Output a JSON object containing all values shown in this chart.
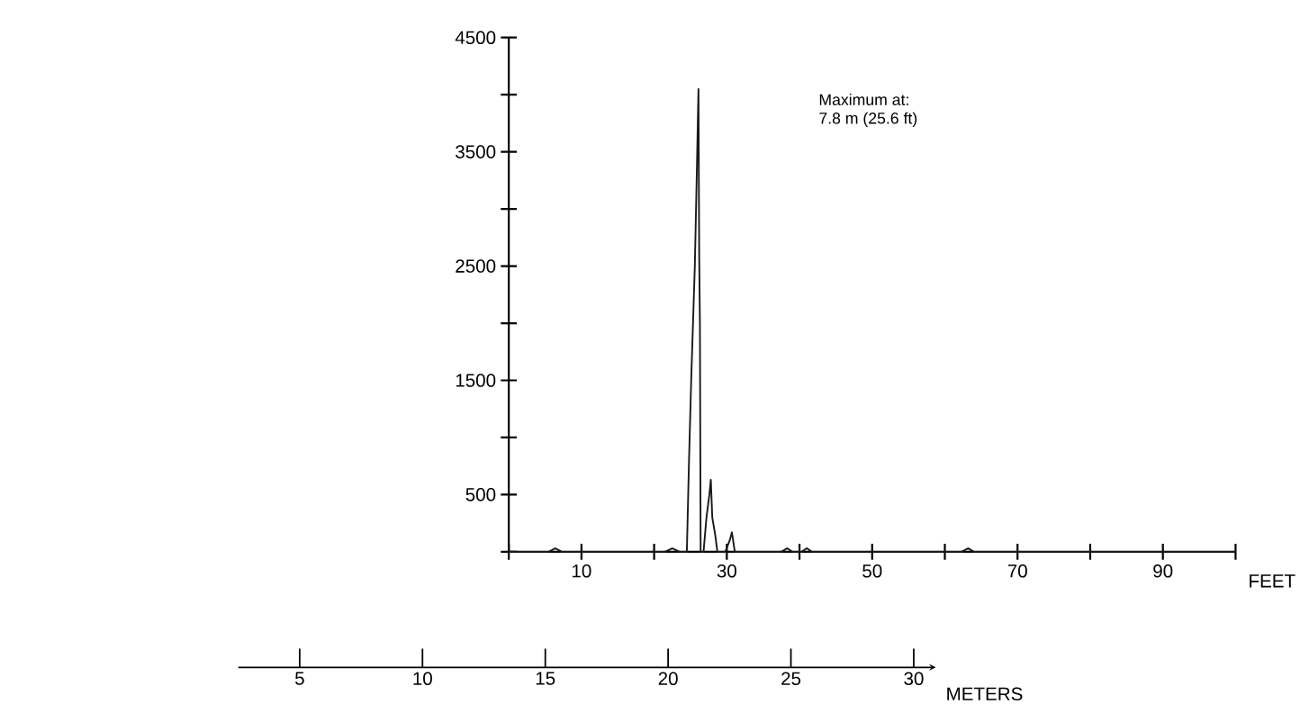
{
  "chart_data": {
    "type": "line",
    "x": [
      0,
      5.5,
      6.4,
      7.3,
      21.5,
      22.5,
      23.5,
      24.5,
      24.8,
      25.1,
      25.6,
      25.9,
      26.1,
      26.2,
      26.3,
      26.4,
      26.8,
      27.2,
      27.6,
      27.8,
      28.0,
      28.4,
      28.7,
      29.8,
      30.4,
      30.7,
      31.1,
      37.5,
      38.3,
      39,
      40.3,
      41,
      41.7,
      62.3,
      63.2,
      64,
      100
    ],
    "series": [
      {
        "color": "#1a1a1a",
        "values": [
          0,
          0,
          30,
          0,
          0,
          30,
          0,
          0,
          800,
          1500,
          2500,
          3400,
          4050,
          2600,
          2000,
          0,
          0,
          300,
          500,
          630,
          300,
          150,
          0,
          0,
          100,
          170,
          0,
          0,
          30,
          0,
          0,
          30,
          0,
          0,
          30,
          0,
          0
        ]
      }
    ],
    "xlabel": "FEET",
    "x2label": "METERS",
    "xlim": [
      0,
      100
    ],
    "xticks": [
      {
        "value": 0,
        "label": null
      },
      10,
      {
        "value": 20,
        "label": null
      },
      30,
      {
        "value": 40,
        "label": null
      },
      50,
      {
        "value": 60,
        "label": null
      },
      70,
      {
        "value": 80,
        "label": null
      },
      90,
      {
        "value": 100,
        "label": null
      }
    ],
    "x2lim": [
      2.5,
      30.9
    ],
    "x2ticks": [
      5,
      10,
      15,
      20,
      25,
      30
    ],
    "ylim": [
      0,
      4500
    ],
    "yticks": [
      {
        "value": 0,
        "label": null
      },
      500,
      {
        "value": 1000,
        "label": null
      },
      1500,
      {
        "value": 2000,
        "label": null
      },
      2500,
      {
        "value": 3000,
        "label": null
      },
      3500,
      {
        "value": 4000,
        "label": null
      },
      4500
    ],
    "annotations": [
      "Maximum at:",
      "7.8 m (25.6 ft)"
    ]
  }
}
